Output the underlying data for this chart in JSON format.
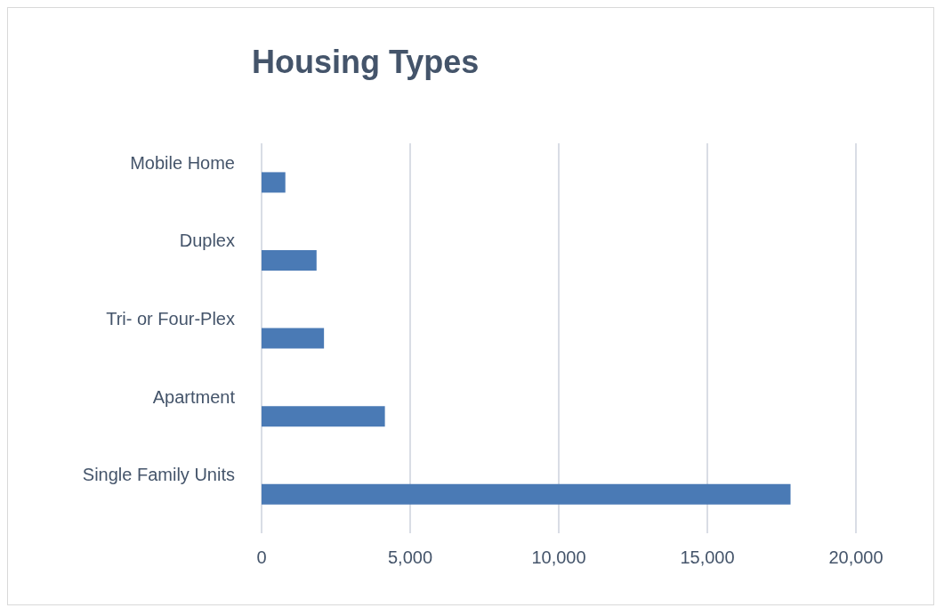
{
  "chart_data": {
    "type": "bar",
    "orientation": "horizontal",
    "title": "Housing Types",
    "categories": [
      "Mobile Home",
      "Duplex",
      "Tri- or Four-Plex",
      "Apartment",
      "Single Family Units"
    ],
    "values": [
      800,
      1850,
      2100,
      4150,
      17800
    ],
    "color": "#4a7ab5",
    "xlim": [
      0,
      20000
    ],
    "xticks": [
      0,
      {
        "value": 5000,
        "label": "5,000"
      },
      {
        "value": 10000,
        "label": "10,000"
      },
      {
        "value": 15000,
        "label": "15,000"
      },
      {
        "value": 20000,
        "label": "20,000"
      }
    ],
    "grid": "x"
  }
}
